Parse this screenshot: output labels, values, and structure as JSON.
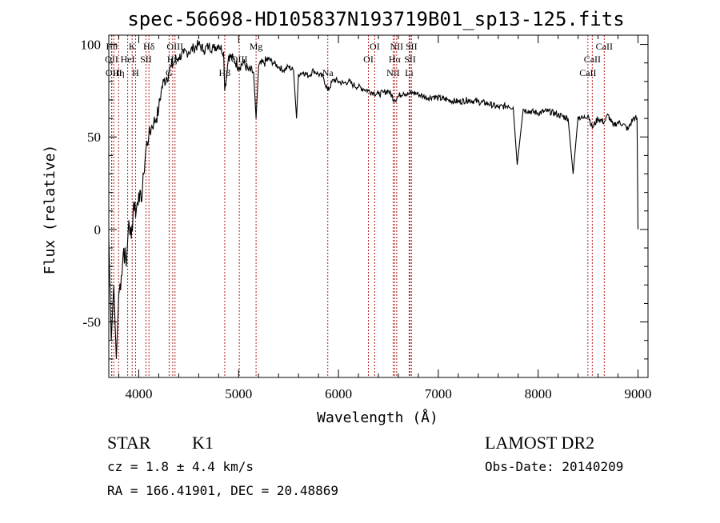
{
  "chart_data": {
    "type": "line",
    "title": "spec-56698-HD105837N193719B01_sp13-125.fits",
    "xlabel": "Wavelength (Å)",
    "ylabel": "Flux (relative)",
    "xlim": [
      3700,
      9100
    ],
    "ylim": [
      -80,
      105
    ],
    "xticks": [
      4000,
      5000,
      6000,
      7000,
      8000,
      9000
    ],
    "yticks": [
      -50,
      0,
      50,
      100
    ],
    "grid": false,
    "line_color": "#000000",
    "marker_line_color": "#b22222",
    "series": [
      {
        "x": [
          3700,
          3725,
          3750,
          3775,
          3800,
          3825,
          3850,
          3875,
          3900,
          3925,
          3950,
          3975,
          4000,
          4025,
          4050,
          4075,
          4100,
          4125,
          4150,
          4175,
          4200,
          4225,
          4250,
          4275,
          4300,
          4325,
          4350,
          4375,
          4400,
          4450,
          4500,
          4550,
          4600,
          4650,
          4700,
          4750,
          4800,
          4850,
          4861,
          4900,
          4950,
          5000,
          5050,
          5100,
          5150,
          5175,
          5200,
          5250,
          5300,
          5350,
          5400,
          5450,
          5500,
          5550,
          5580,
          5600,
          5650,
          5700,
          5750,
          5800,
          5850,
          5893,
          5950,
          6000,
          6050,
          6100,
          6150,
          6200,
          6250,
          6300,
          6350,
          6400,
          6450,
          6500,
          6563,
          6600,
          6650,
          6700,
          6750,
          6800,
          6850,
          6900,
          6950,
          7000,
          7100,
          7200,
          7300,
          7400,
          7500,
          7600,
          7700,
          7750,
          7790,
          7850,
          7900,
          8000,
          8100,
          8200,
          8300,
          8350,
          8400,
          8450,
          8500,
          8542,
          8600,
          8662,
          8700,
          8750,
          8800,
          8850,
          8900,
          8950,
          8990,
          9000
        ],
        "y": [
          -5,
          -60,
          -30,
          -70,
          -35,
          -25,
          -10,
          -20,
          5,
          -5,
          15,
          10,
          20,
          15,
          30,
          45,
          50,
          55,
          58,
          60,
          65,
          75,
          80,
          82,
          85,
          88,
          90,
          92,
          93,
          95,
          96,
          98,
          100,
          97,
          99,
          98,
          100,
          96,
          75,
          94,
          92,
          88,
          90,
          86,
          85,
          60,
          88,
          90,
          92,
          90,
          88,
          86,
          88,
          86,
          60,
          84,
          85,
          83,
          86,
          84,
          82,
          75,
          81,
          80,
          79,
          80,
          78,
          77,
          76,
          75,
          74,
          73,
          74,
          75,
          70,
          72,
          74,
          73,
          74,
          73,
          72,
          71,
          72,
          71,
          70,
          69,
          70,
          69,
          68,
          66,
          67,
          66,
          35,
          65,
          64,
          63,
          64,
          62,
          60,
          30,
          61,
          60,
          62,
          55,
          60,
          58,
          62,
          56,
          58,
          57,
          54,
          60,
          60,
          0
        ]
      }
    ],
    "lines": [
      {
        "x": 3730,
        "label": "Hθ",
        "row": 1
      },
      {
        "x": 3728,
        "label": "OII",
        "row": 2
      },
      {
        "x": 3750,
        "label": "OIII",
        "row": 3
      },
      {
        "x": 3798,
        "label": "Hη",
        "row": 3
      },
      {
        "x": 3889,
        "label": "HeI",
        "row": 2
      },
      {
        "x": 3934,
        "label": "K",
        "row": 1
      },
      {
        "x": 3968,
        "label": "H",
        "row": 3
      },
      {
        "x": 4072,
        "label": "SII",
        "row": 2
      },
      {
        "x": 4102,
        "label": "Hδ",
        "row": 1
      },
      {
        "x": 4304,
        "label": "G",
        "row": 3
      },
      {
        "x": 4340,
        "label": "Hγ",
        "row": 2
      },
      {
        "x": 4363,
        "label": "OIII",
        "row": 1
      },
      {
        "x": 4861,
        "label": "Hβ",
        "row": 3
      },
      {
        "x": 5007,
        "label": "OIII",
        "row": 2
      },
      {
        "x": 5175,
        "label": "Mg",
        "row": 1
      },
      {
        "x": 5893,
        "label": "Na",
        "row": 3
      },
      {
        "x": 6300,
        "label": "OI",
        "row": 2
      },
      {
        "x": 6363,
        "label": "OI",
        "row": 1
      },
      {
        "x": 6548,
        "label": "NII",
        "row": 3
      },
      {
        "x": 6563,
        "label": "Hα",
        "row": 2
      },
      {
        "x": 6583,
        "label": "NII",
        "row": 1
      },
      {
        "x": 6708,
        "label": "Li",
        "row": 3
      },
      {
        "x": 6717,
        "label": "SII",
        "row": 2
      },
      {
        "x": 6731,
        "label": "SII",
        "row": 1
      },
      {
        "x": 8498,
        "label": "CaII",
        "row": 3
      },
      {
        "x": 8542,
        "label": "CaII",
        "row": 2
      },
      {
        "x": 8662,
        "label": "CaII",
        "row": 1
      }
    ]
  },
  "info": {
    "class_label": "STAR",
    "subclass": "K1",
    "cz": "cz = 1.8 ± 4.4 km/s",
    "coords": "RA = 166.41901, DEC =  20.48869",
    "survey": "LAMOST DR2",
    "obs_date": "Obs-Date: 20140209"
  }
}
